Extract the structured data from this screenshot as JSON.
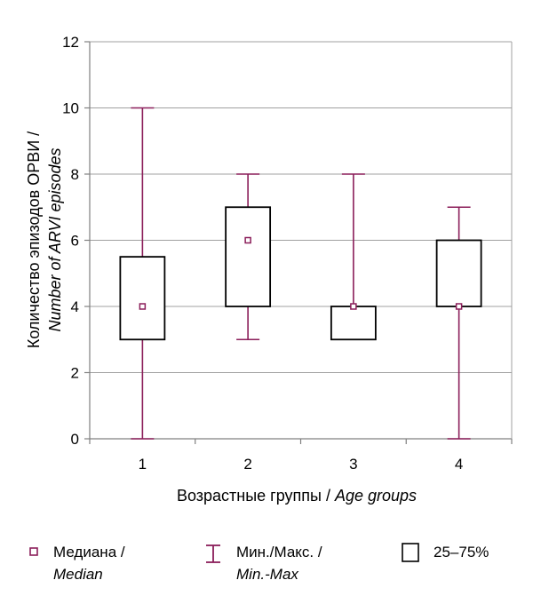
{
  "chart_data": {
    "type": "boxplot",
    "categories": [
      "1",
      "2",
      "3",
      "4"
    ],
    "series": [
      {
        "category": "1",
        "min": 0,
        "q1": 3,
        "median": 4,
        "q3": 5.5,
        "max": 10
      },
      {
        "category": "2",
        "min": 3,
        "q1": 4,
        "median": 6,
        "q3": 7,
        "max": 8
      },
      {
        "category": "3",
        "min": 3,
        "q1": 3,
        "median": 4,
        "q3": 4,
        "max": 8
      },
      {
        "category": "4",
        "min": 0,
        "q1": 4,
        "median": 4,
        "q3": 6,
        "max": 7
      }
    ],
    "yticks": [
      0,
      2,
      4,
      6,
      8,
      10,
      12
    ],
    "ylim": [
      0,
      12
    ],
    "grid": true,
    "xlabel": {
      "main": "Возрастные группы / ",
      "italic": "Age groups"
    },
    "ylabel": {
      "line1": "Количество эпизодов ОРВИ /",
      "line2": "Number of ARVI episodes"
    },
    "legend": {
      "median": {
        "line1": "Медиана /",
        "line2": "Median"
      },
      "minmax": {
        "line1": "Мин./Макс. /",
        "line2": "Min.-Max"
      },
      "iqr": {
        "line1": "25–75%"
      }
    },
    "colors": {
      "whisker": "#8b1e5a",
      "box": "#000000",
      "grid": "#a0a0a0",
      "axis": "#808080"
    }
  }
}
